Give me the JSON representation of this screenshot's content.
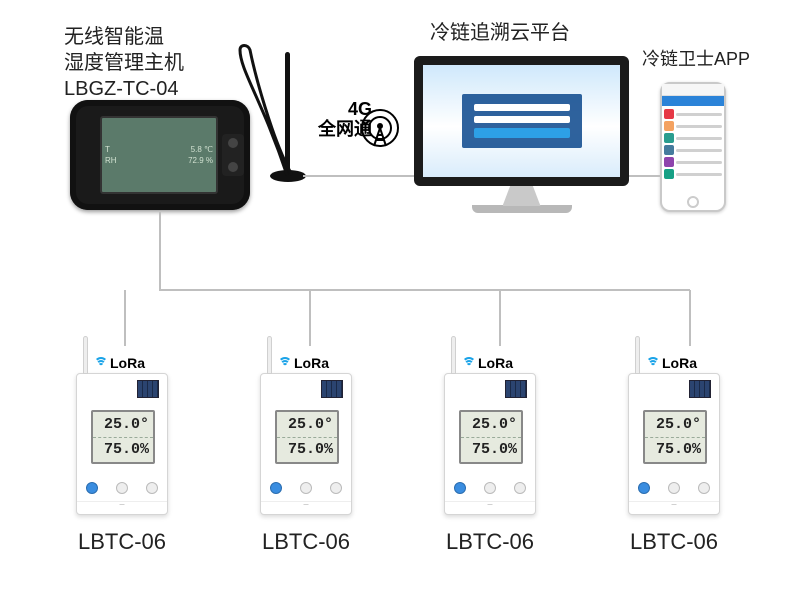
{
  "gateway": {
    "title_line1": "无线智能温",
    "title_line2": "湿度管理主机",
    "model": "LBGZ-TC-04",
    "screen": {
      "temp": "5.8 ℃",
      "humidity": "72.9 %"
    }
  },
  "network": {
    "label_line1": "4G",
    "label_line2": "全网通"
  },
  "cloud": {
    "title": "冷链追溯云平台"
  },
  "app": {
    "title": "冷链卫士APP",
    "tile_colors": [
      "#e63946",
      "#f4a261",
      "#2a9d8f",
      "#457b9d",
      "#8e44ad",
      "#16a085"
    ]
  },
  "lora": {
    "label": "LoRa"
  },
  "sensors": [
    {
      "model": "LBTC-06",
      "temp": "25.0",
      "humidity": "75.0"
    },
    {
      "model": "LBTC-06",
      "temp": "25.0",
      "humidity": "75.0"
    },
    {
      "model": "LBTC-06",
      "temp": "25.0",
      "humidity": "75.0"
    },
    {
      "model": "LBTC-06",
      "temp": "25.0",
      "humidity": "75.0"
    }
  ],
  "style": {
    "wire_color": "#bfbfbf",
    "wire_width": 2
  }
}
